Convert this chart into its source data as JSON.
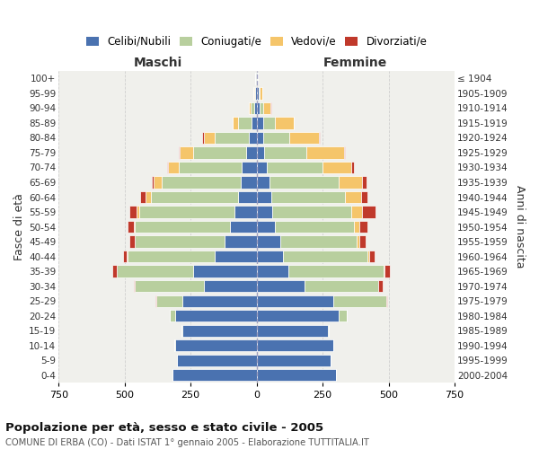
{
  "age_groups": [
    "0-4",
    "5-9",
    "10-14",
    "15-19",
    "20-24",
    "25-29",
    "30-34",
    "35-39",
    "40-44",
    "45-49",
    "50-54",
    "55-59",
    "60-64",
    "65-69",
    "70-74",
    "75-79",
    "80-84",
    "85-89",
    "90-94",
    "95-99",
    "100+"
  ],
  "birth_years": [
    "2000-2004",
    "1995-1999",
    "1990-1994",
    "1985-1989",
    "1980-1984",
    "1975-1979",
    "1970-1974",
    "1965-1969",
    "1960-1964",
    "1955-1959",
    "1950-1954",
    "1945-1949",
    "1940-1944",
    "1935-1939",
    "1930-1934",
    "1925-1929",
    "1920-1924",
    "1915-1919",
    "1910-1914",
    "1905-1909",
    "≤ 1904"
  ],
  "male_celibe": [
    320,
    300,
    310,
    280,
    310,
    280,
    200,
    240,
    160,
    120,
    100,
    85,
    70,
    60,
    55,
    40,
    30,
    20,
    8,
    5,
    2
  ],
  "male_coniugato": [
    0,
    1,
    2,
    5,
    20,
    100,
    260,
    290,
    330,
    340,
    360,
    360,
    330,
    300,
    240,
    200,
    130,
    50,
    15,
    5,
    2
  ],
  "male_vedovo": [
    0,
    0,
    0,
    0,
    0,
    0,
    1,
    1,
    2,
    3,
    5,
    10,
    20,
    30,
    40,
    50,
    40,
    20,
    8,
    3,
    1
  ],
  "male_divorziato": [
    0,
    0,
    0,
    0,
    0,
    2,
    5,
    15,
    15,
    20,
    25,
    28,
    20,
    8,
    5,
    5,
    5,
    2,
    0,
    0,
    0
  ],
  "female_nubile": [
    300,
    280,
    290,
    270,
    310,
    290,
    180,
    120,
    100,
    90,
    70,
    60,
    55,
    50,
    40,
    30,
    25,
    25,
    12,
    8,
    2
  ],
  "female_coniugata": [
    0,
    1,
    2,
    5,
    30,
    200,
    280,
    360,
    320,
    290,
    300,
    300,
    280,
    260,
    210,
    160,
    100,
    45,
    12,
    5,
    2
  ],
  "female_vedova": [
    0,
    0,
    0,
    0,
    0,
    1,
    2,
    3,
    5,
    10,
    20,
    40,
    60,
    90,
    110,
    140,
    110,
    70,
    30,
    10,
    1
  ],
  "female_divorziata": [
    0,
    0,
    0,
    0,
    2,
    5,
    15,
    22,
    22,
    22,
    30,
    52,
    25,
    15,
    10,
    5,
    5,
    2,
    1,
    0,
    0
  ],
  "colors": {
    "celibe": "#4a72b0",
    "coniugato": "#b8cf9e",
    "vedovo": "#f5c56a",
    "divorziato": "#c0392b"
  },
  "title": "Popolazione per età, sesso e stato civile - 2005",
  "subtitle": "COMUNE DI ERBA (CO) - Dati ISTAT 1° gennaio 2005 - Elaborazione TUTTITALIA.IT",
  "label_maschi": "Maschi",
  "label_femmine": "Femmine",
  "ylabel_left": "Fasce di età",
  "ylabel_right": "Anni di nascita",
  "xlim": 750,
  "bg_color": "#f0f0ec",
  "grid_color": "#cccccc",
  "legend_labels": [
    "Celibi/Nubili",
    "Coniugati/e",
    "Vedovi/e",
    "Divorziati/e"
  ]
}
